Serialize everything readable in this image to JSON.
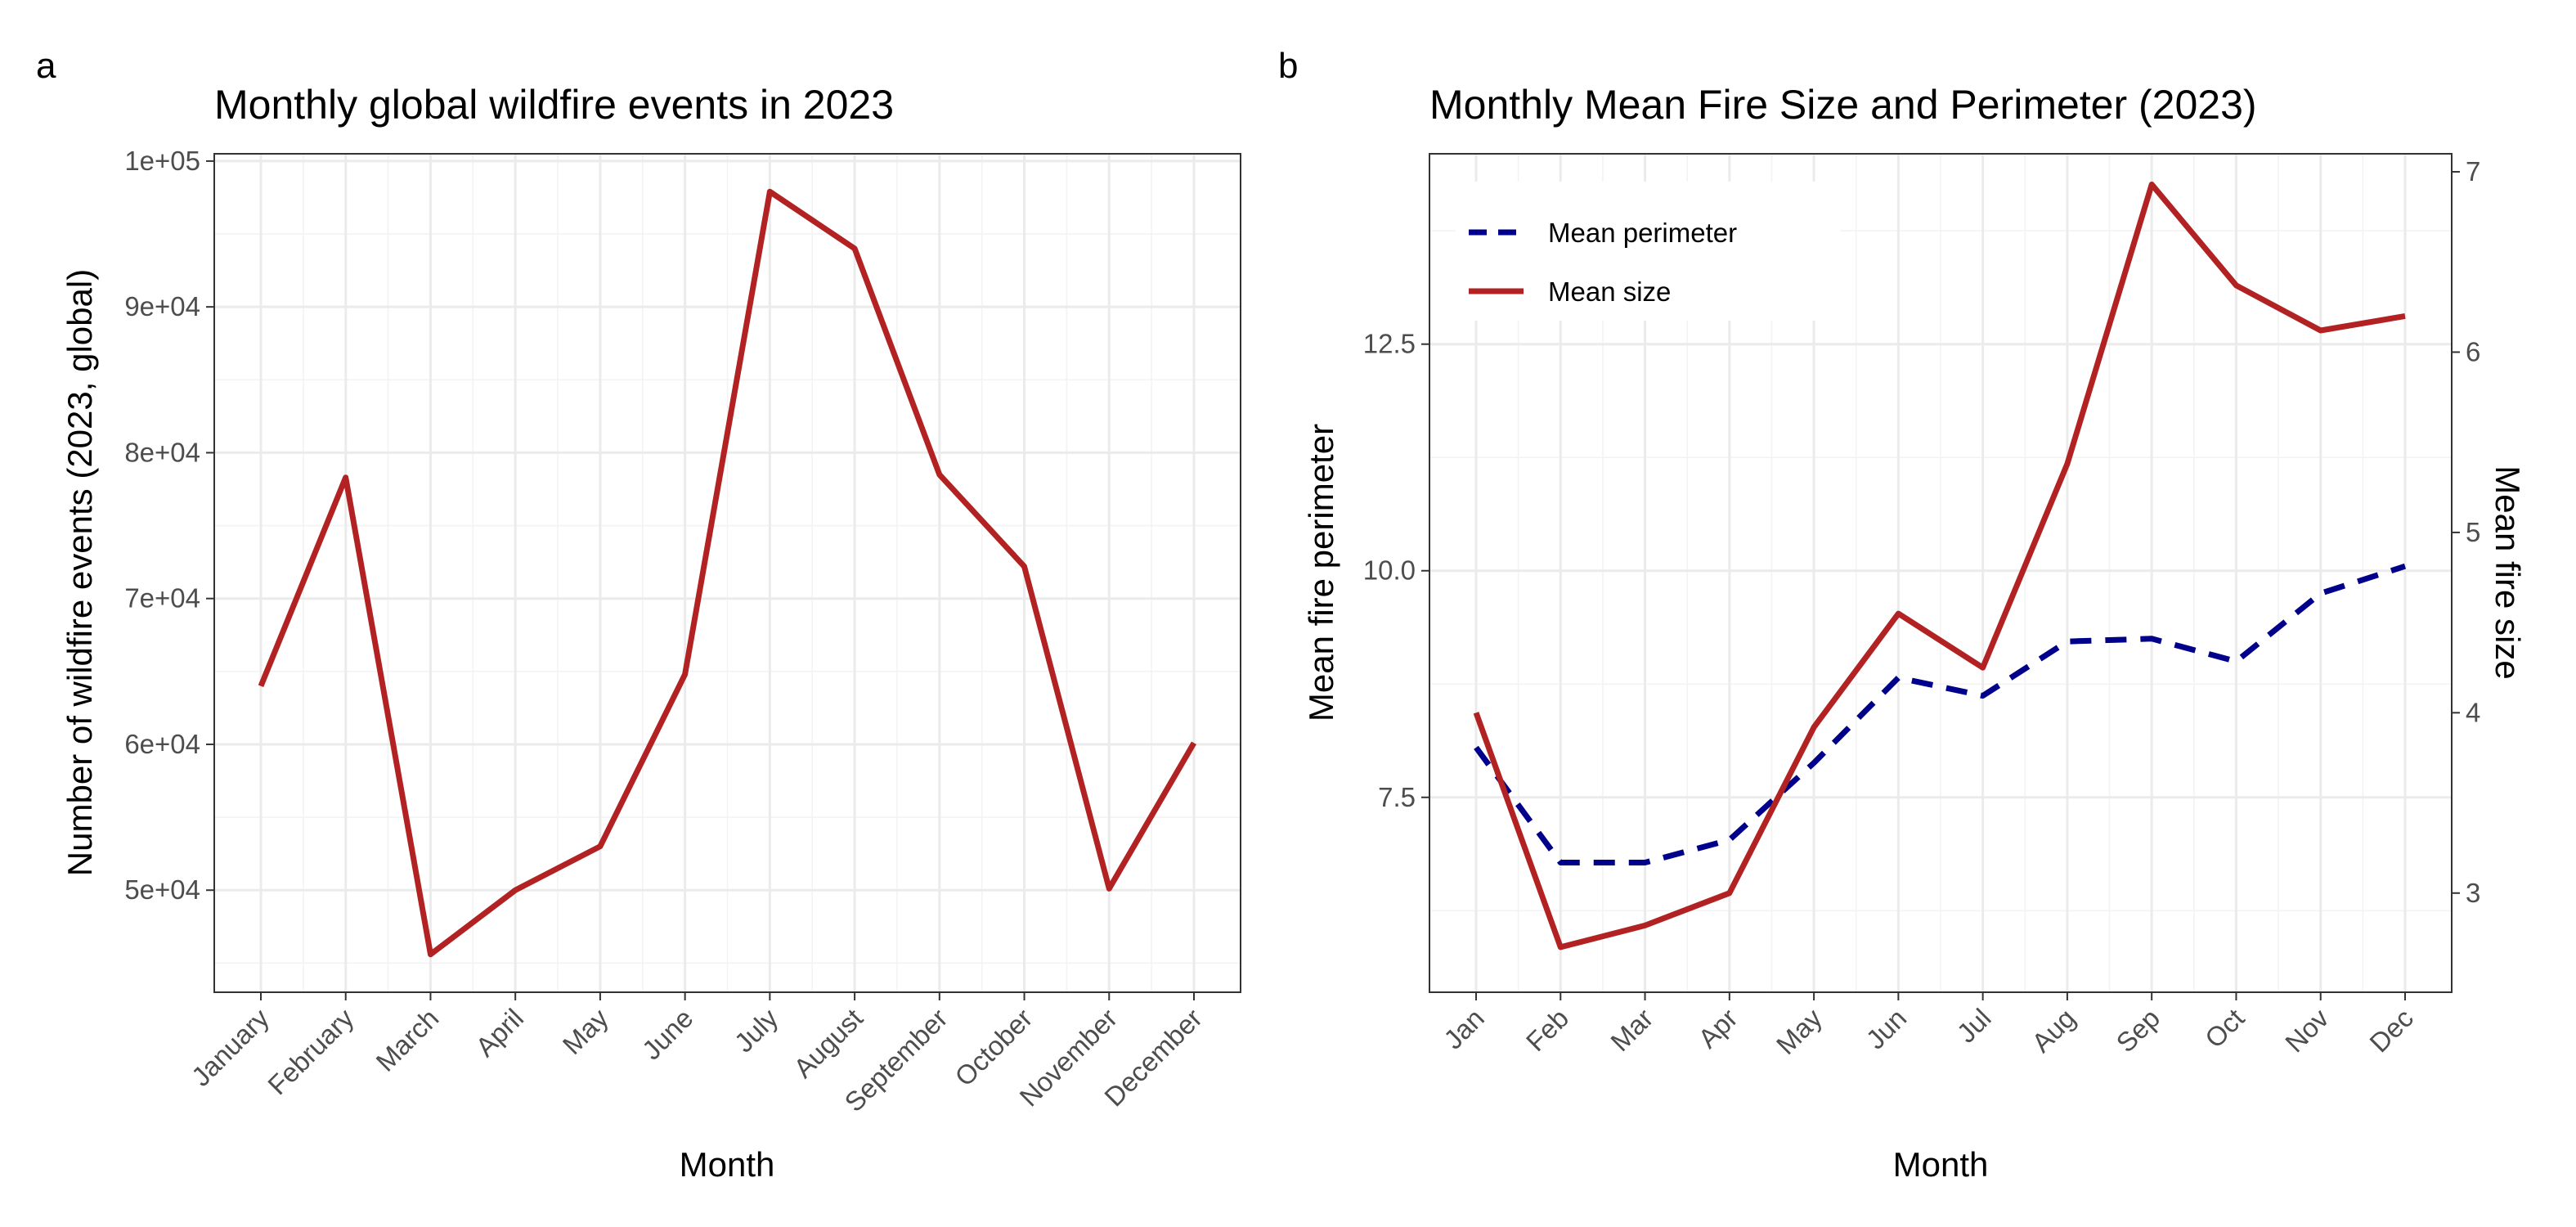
{
  "chart_data": [
    {
      "panel_label": "a",
      "type": "line",
      "title": "Monthly global wildfire events in 2023",
      "xlabel": "Month",
      "ylabel": "Number of wildfire events (2023, global)",
      "categories": [
        "January",
        "February",
        "March",
        "April",
        "May",
        "June",
        "July",
        "August",
        "September",
        "October",
        "November",
        "December"
      ],
      "series": [
        {
          "values": [
            64000,
            78300,
            45600,
            50000,
            53000,
            64800,
            97900,
            94000,
            78500,
            72200,
            50100,
            60100
          ],
          "color": "#b22222"
        }
      ],
      "ylim": [
        43000,
        100500
      ],
      "yticks": [
        50000,
        60000,
        70000,
        80000,
        90000,
        100000
      ],
      "ytick_labels": [
        "5e+04",
        "6e+04",
        "7e+04",
        "8e+04",
        "9e+04",
        "1e+05"
      ],
      "grid": true
    },
    {
      "panel_label": "b",
      "type": "line",
      "title": "Monthly Mean Fire Size and Perimeter (2023)",
      "xlabel": "Month",
      "ylabel": "Mean fire perimeter",
      "ylabel_right": "Mean fire size",
      "categories": [
        "Jan",
        "Feb",
        "Mar",
        "Apr",
        "May",
        "Jun",
        "Jul",
        "Aug",
        "Sep",
        "Oct",
        "Nov",
        "Dec"
      ],
      "series": [
        {
          "name": "Mean perimeter",
          "axis": "left",
          "dash": "dashed",
          "color": "#00008b",
          "values": [
            8.05,
            6.78,
            6.78,
            7.03,
            7.88,
            8.82,
            8.62,
            9.22,
            9.25,
            9.0,
            9.75,
            10.05
          ]
        },
        {
          "name": "Mean size",
          "axis": "right",
          "dash": "solid",
          "color": "#b22222",
          "values": [
            4.0,
            2.7,
            2.82,
            3.0,
            3.92,
            4.55,
            4.25,
            5.38,
            6.93,
            6.37,
            6.12,
            6.2
          ]
        }
      ],
      "ylim": [
        5.35,
        14.6
      ],
      "yticks": [
        7.5,
        10.0,
        12.5
      ],
      "ytick_labels": [
        "7.5",
        "10.0",
        "12.5"
      ],
      "ylim_right": [
        2.45,
        7.1
      ],
      "yticks_right": [
        3,
        4,
        5,
        6,
        7
      ],
      "ytick_labels_right": [
        "3",
        "4",
        "5",
        "6",
        "7"
      ],
      "legend": "top-left",
      "grid": true
    }
  ]
}
